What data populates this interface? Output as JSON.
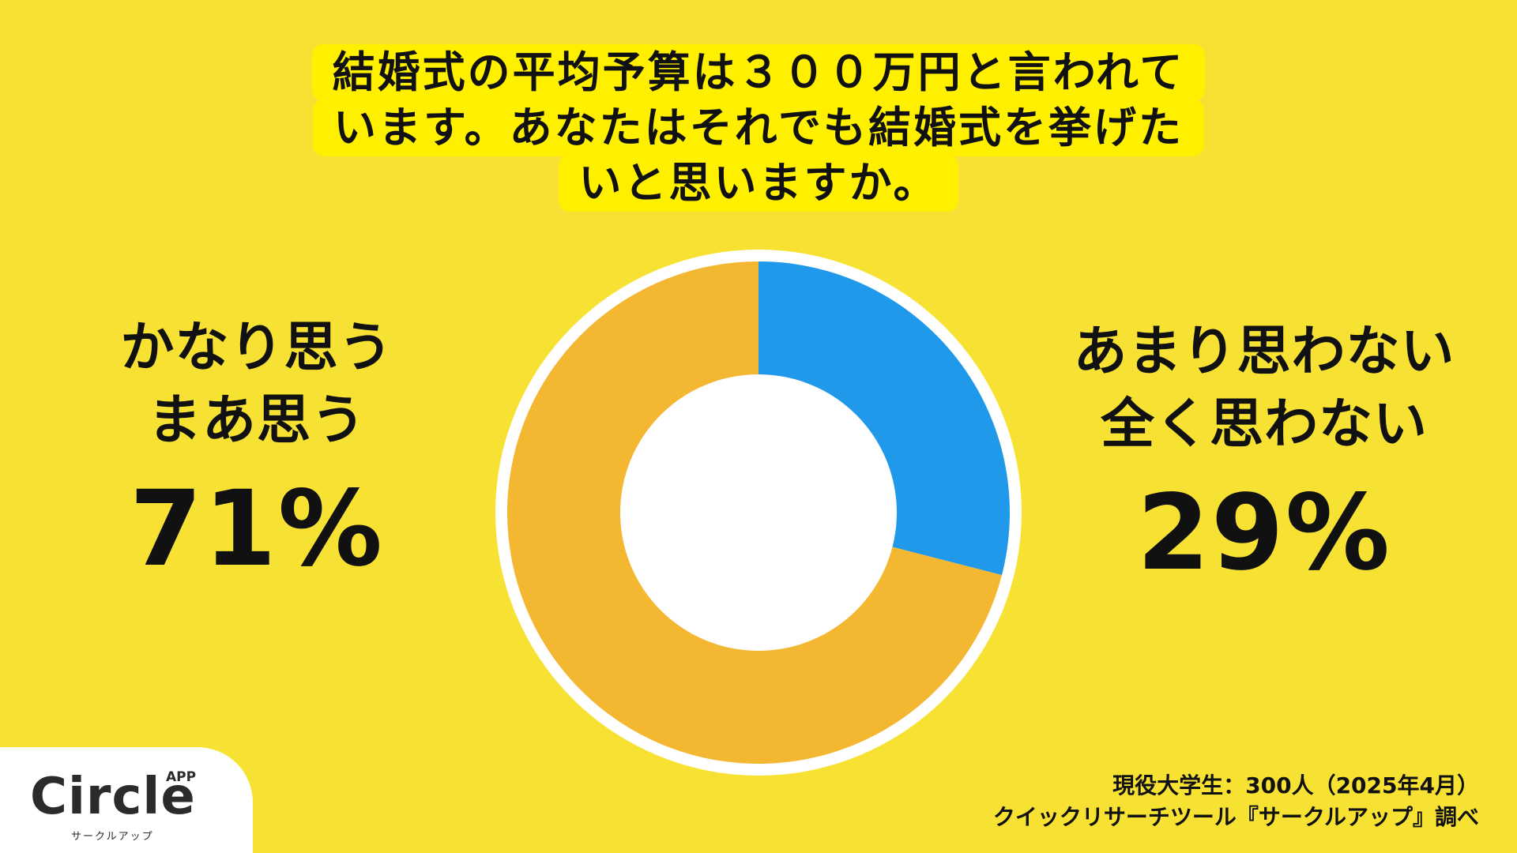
{
  "question": {
    "line1": "結婚式の平均予算は３００万円と言われて",
    "line2": "います。あなたはそれでも結婚式を挙げた",
    "line3": "いと思いますか。"
  },
  "left": {
    "label1": "かなり思う",
    "label2": "まあ思う",
    "percent": "71%"
  },
  "right": {
    "label1": "あまり思わない",
    "label2": "全く思わない",
    "percent": "29%"
  },
  "logo": {
    "word": "Circle",
    "app": "APP",
    "sub": "サークルアップ"
  },
  "source": {
    "line1": "現役大学生：300人（2025年4月）",
    "line2": "クイックリサーチツール『サークルアップ』調べ"
  },
  "colors": {
    "background": "#f7e234",
    "question_bg": "#fff000",
    "agree": "#f4b731",
    "disagree": "#2199ea"
  },
  "chart_data": {
    "type": "pie",
    "donut": true,
    "slices": [
      {
        "label": "あまり思わない / 全く思わない",
        "value": 29,
        "color": "#2199ea"
      },
      {
        "label": "かなり思う / まあ思う",
        "value": 71,
        "color": "#f4b731"
      }
    ],
    "start": "12 o'clock",
    "direction": "clockwise"
  }
}
